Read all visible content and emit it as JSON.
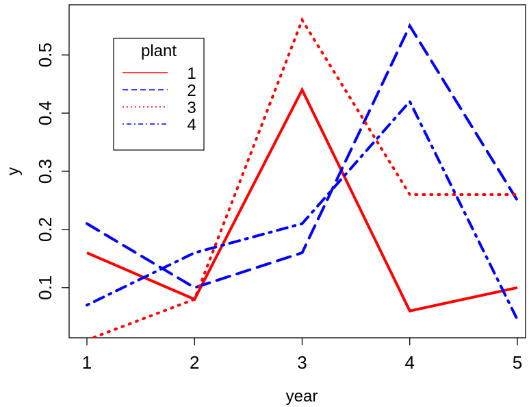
{
  "chart_data": {
    "type": "line",
    "title": "",
    "xlabel": "year",
    "ylabel": "y",
    "x": [
      1,
      2,
      3,
      4,
      5
    ],
    "xlim": [
      1,
      5
    ],
    "ylim": [
      0.035,
      0.565
    ],
    "xticks": [
      "1",
      "2",
      "3",
      "4",
      "5"
    ],
    "yticks": [
      "0.1",
      "0.2",
      "0.3",
      "0.4",
      "0.5"
    ],
    "grid": false,
    "legend": {
      "title": "plant",
      "position": "top-left"
    },
    "series": [
      {
        "name": "1",
        "values": [
          0.16,
          0.08,
          0.44,
          0.06,
          0.1
        ],
        "color": "#ff0000",
        "linestyle": "solid"
      },
      {
        "name": "2",
        "values": [
          0.21,
          0.1,
          0.16,
          0.55,
          0.25
        ],
        "color": "#0000ff",
        "linestyle": "dashed"
      },
      {
        "name": "3",
        "values": [
          0.01,
          0.08,
          0.56,
          0.26,
          0.26
        ],
        "color": "#ff0000",
        "linestyle": "dotted"
      },
      {
        "name": "4",
        "values": [
          0.07,
          0.16,
          0.21,
          0.42,
          0.045
        ],
        "color": "#0000ff",
        "linestyle": "dotdash"
      }
    ]
  }
}
